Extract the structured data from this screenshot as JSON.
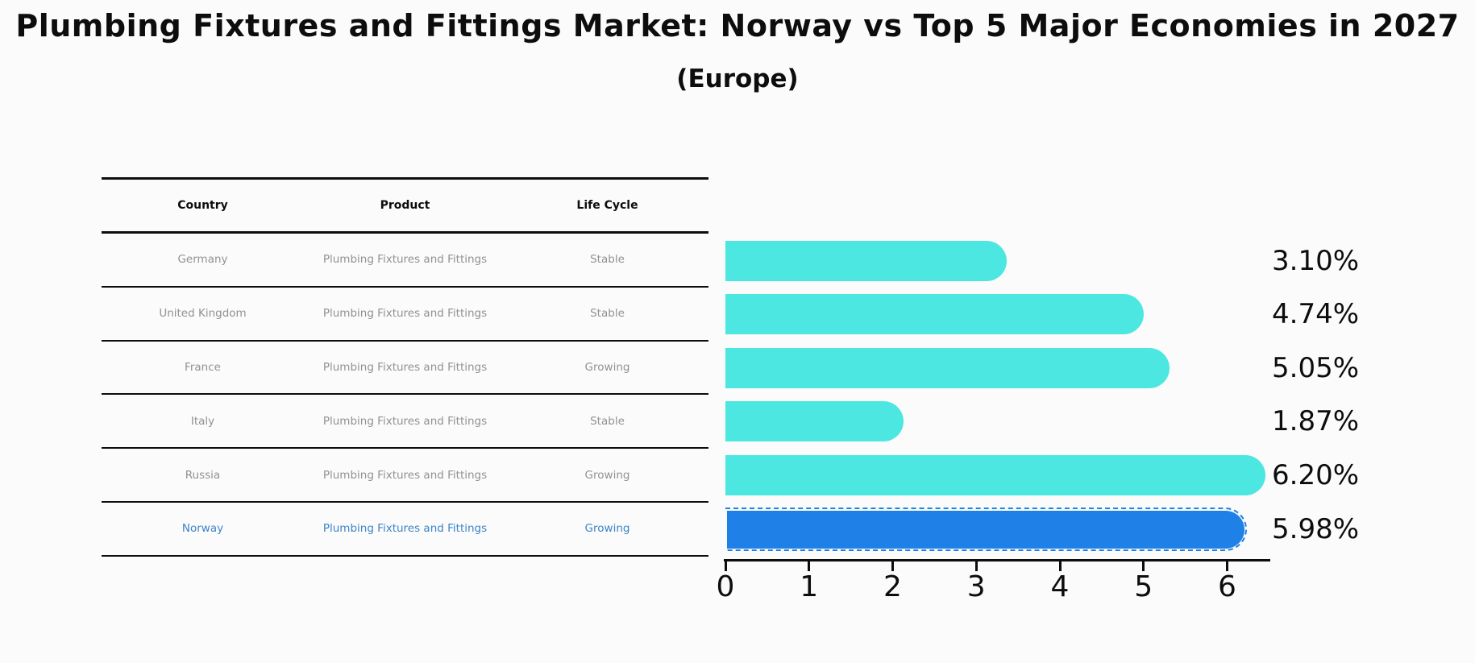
{
  "title": "Plumbing Fixtures and Fittings Market: Norway vs Top 5 Major Economies in 2027",
  "subtitle": "(Europe)",
  "table": {
    "headers": [
      "Country",
      "Product",
      "Life Cycle"
    ],
    "rows": [
      {
        "country": "Germany",
        "product": "Plumbing Fixtures and Fittings",
        "life_cycle": "Stable",
        "highlighted": false
      },
      {
        "country": "United Kingdom",
        "product": "Plumbing Fixtures and Fittings",
        "life_cycle": "Stable",
        "highlighted": false
      },
      {
        "country": "France",
        "product": "Plumbing Fixtures and Fittings",
        "life_cycle": "Growing",
        "highlighted": false
      },
      {
        "country": "Italy",
        "product": "Plumbing Fixtures and Fittings",
        "life_cycle": "Stable",
        "highlighted": false
      },
      {
        "country": "Russia",
        "product": "Plumbing Fixtures and Fittings",
        "life_cycle": "Growing",
        "highlighted": false
      },
      {
        "country": "Norway",
        "product": "Plumbing Fixtures and Fittings",
        "life_cycle": "Growing",
        "highlighted": true
      }
    ]
  },
  "chart_data": {
    "type": "bar",
    "orientation": "horizontal",
    "title": "Plumbing Fixtures and Fittings Market: Norway vs Top 5 Major Economies in 2027 (Europe)",
    "categories": [
      "Germany",
      "United Kingdom",
      "France",
      "Italy",
      "Russia",
      "Norway"
    ],
    "values": [
      3.1,
      4.74,
      5.05,
      1.87,
      6.2,
      5.98
    ],
    "value_labels": [
      "3.10%",
      "4.74%",
      "5.05%",
      "1.87%",
      "6.20%",
      "5.98%"
    ],
    "x_ticks": [
      "0",
      "1",
      "2",
      "3",
      "4",
      "5",
      "6"
    ],
    "xlim": [
      0,
      6.5
    ],
    "grid": false,
    "legend_position": "none",
    "bar_color": "#4be7e0",
    "highlight_color": "#1f80e8",
    "highlight_index": 5,
    "highlight_style": "dashed-outline"
  },
  "colors": {
    "background": "#fbfbfb",
    "bar": "#4be7e0",
    "highlight_bar": "#1f80e8",
    "table_text": "#919191",
    "highlight_text": "#3c84c8",
    "axis_text": "#0d0d0d"
  }
}
